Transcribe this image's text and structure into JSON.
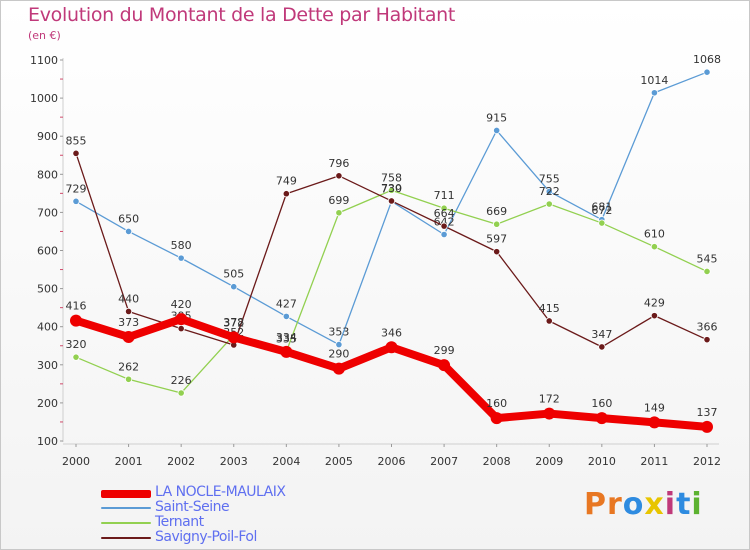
{
  "header": {
    "title": "Evolution du Montant de la Dette par Habitant",
    "subtitle": "(en €)"
  },
  "logo": {
    "text": "Proxiti",
    "colors": [
      "#e87722",
      "#e87722",
      "#2e8be0",
      "#e8c500",
      "#c0397a",
      "#2e8be0",
      "#5cb230"
    ]
  },
  "chart_data": {
    "type": "line",
    "x": [
      "2000",
      "2001",
      "2002",
      "2003",
      "2004",
      "2005",
      "2006",
      "2007",
      "2008",
      "2009",
      "2010",
      "2011",
      "2012"
    ],
    "yticks": [
      "100",
      "200",
      "300",
      "400",
      "500",
      "600",
      "700",
      "800",
      "900",
      "1000",
      "1100"
    ],
    "ylim": [
      100,
      1100
    ],
    "grid": false,
    "legend_position": "bottom-left",
    "series": [
      {
        "name": "Saint-Seine",
        "color": "#5b9bd5",
        "values": [
          729,
          650,
          580,
          505,
          427,
          353,
          729,
          642,
          915,
          755,
          681,
          1014,
          1068
        ],
        "labels": [
          "729",
          "650",
          "580",
          "505",
          "427",
          "353",
          "729",
          "642",
          "915",
          "755",
          "681",
          "1014",
          "1068"
        ]
      },
      {
        "name": "Ternant",
        "color": "#92d050",
        "values": [
          320,
          262,
          226,
          378,
          335,
          699,
          758,
          711,
          669,
          722,
          672,
          610,
          545
        ],
        "labels": [
          "320",
          "262",
          "226",
          "378",
          "335",
          "699",
          "758",
          "711",
          "669",
          "722",
          "672",
          "610",
          "545"
        ]
      },
      {
        "name": "Savigny-Poil-Fol",
        "color": "#6b1a1a",
        "values": [
          855,
          440,
          395,
          352,
          749,
          796,
          730,
          664,
          597,
          415,
          347,
          429,
          366
        ],
        "labels": [
          "855",
          "440",
          "395",
          "352",
          "749",
          "796",
          "730",
          "664",
          "597",
          "415",
          "347",
          "429",
          "366"
        ]
      },
      {
        "name": "LA NOCLE-MAULAIX",
        "color": "#ee0000",
        "values": [
          416,
          373,
          420,
          372,
          334,
          290,
          346,
          299,
          160,
          172,
          160,
          149,
          137
        ],
        "labels": [
          "416",
          "373",
          "420",
          "372",
          "334",
          "290",
          "346",
          "299",
          "160",
          "172",
          "160",
          "149",
          "137"
        ]
      }
    ],
    "legend": [
      {
        "name": "LA NOCLE-MAULAIX",
        "color": "#ee0000"
      },
      {
        "name": "Saint-Seine",
        "color": "#5b9bd5"
      },
      {
        "name": "Ternant",
        "color": "#92d050"
      },
      {
        "name": "Savigny-Poil-Fol",
        "color": "#6b1a1a"
      }
    ]
  }
}
